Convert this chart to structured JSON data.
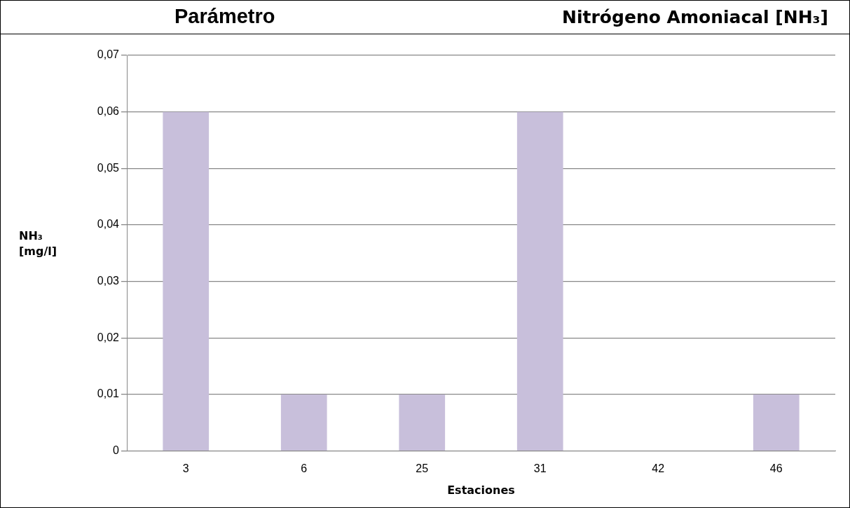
{
  "chart_data": {
    "type": "bar",
    "title": "Parámetro",
    "subtitle": "Nitrógeno Amoniacal  [NH₃]",
    "xlabel": "Estaciones",
    "ylabel": "NH₃ [mg/l]",
    "categories": [
      "3",
      "6",
      "25",
      "31",
      "42",
      "46"
    ],
    "values": [
      0.06,
      0.01,
      0.01,
      0.06,
      0,
      0.01
    ],
    "color": "#c8bfdb",
    "ylim": [
      0,
      0.07
    ],
    "yticks": [
      {
        "value": 0,
        "label": "0"
      },
      {
        "value": 0.01,
        "label": "0,01"
      },
      {
        "value": 0.02,
        "label": "0,02"
      },
      {
        "value": 0.03,
        "label": "0,03"
      },
      {
        "value": 0.04,
        "label": "0,04"
      },
      {
        "value": 0.05,
        "label": "0,05"
      },
      {
        "value": 0.06,
        "label": "0,06"
      },
      {
        "value": 0.07,
        "label": "0,07"
      }
    ],
    "grid": "y",
    "legend": false
  }
}
